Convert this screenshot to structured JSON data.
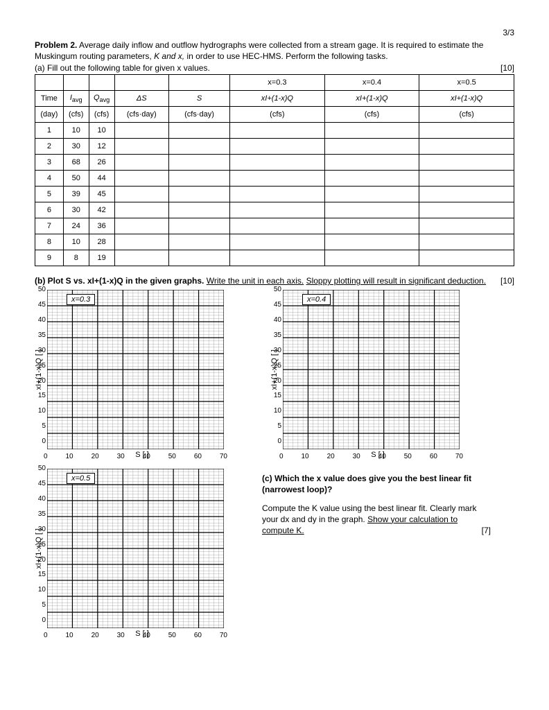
{
  "page_number": "3/3",
  "problem": {
    "number": "Problem 2.",
    "text_main": "Average daily inflow and outflow hydrographs were collected from a stream gage. It is required to estimate the Muskingum routing parameters, ",
    "text_params": "K and x, ",
    "text_mid": "in order to use HEC-HMS. Perform the following tasks.",
    "part_a": "(a) Fill out the following table for given x values.",
    "points_a": "[10]"
  },
  "table": {
    "x_headers": [
      "x=0.3",
      "x=0.4",
      "x=0.5"
    ],
    "sub_header": "xI+(1-x)Q",
    "sub_unit": "(cfs)",
    "col_time": "Time",
    "col_time_unit": "(day)",
    "col_I": "I",
    "col_I_sub": "avg",
    "col_I_unit": "(cfs)",
    "col_Q": "Q",
    "col_Q_sub": "avg",
    "col_Q_unit": "(cfs)",
    "col_dS": "ΔS",
    "col_dS_unit": "(cfs·day)",
    "col_S": "S",
    "col_S_unit": "(cfs·day)",
    "rows": [
      {
        "t": "1",
        "i": "10",
        "q": "10"
      },
      {
        "t": "2",
        "i": "30",
        "q": "12"
      },
      {
        "t": "3",
        "i": "68",
        "q": "26"
      },
      {
        "t": "4",
        "i": "50",
        "q": "44"
      },
      {
        "t": "5",
        "i": "39",
        "q": "45"
      },
      {
        "t": "6",
        "i": "30",
        "q": "42"
      },
      {
        "t": "7",
        "i": "24",
        "q": "36"
      },
      {
        "t": "8",
        "i": "10",
        "q": "28"
      },
      {
        "t": "9",
        "i": "8",
        "q": "19"
      }
    ]
  },
  "part_b": {
    "label": "(b) Plot S vs. xI+(1-x)Q  in the given graphs. ",
    "u1": "Write the unit in each axis.",
    "u2": " Sloppy plotting will result in significant deduction.",
    "points": "[10]"
  },
  "part_c": {
    "label": "(c) Which the x value does give you the best linear fit (narrowest loop)?",
    "text1": "Compute the K value using the best linear fit. Clearly mark your dx and dy in the graph. ",
    "u1": "Show your calculation to compute K.",
    "points": "[7]"
  },
  "graph": {
    "ylabel": "xI+(1-x)Q [          ]",
    "xlabel": "S [               ]",
    "legends": [
      "x=0.3",
      "x=0.4",
      "x=0.5"
    ],
    "yticks": [
      "50",
      "45",
      "40",
      "35",
      "30",
      "25",
      "20",
      "15",
      "10",
      "5",
      "0"
    ],
    "xticks": [
      "0",
      "10",
      "20",
      "30",
      "40",
      "50",
      "60",
      "70"
    ],
    "style": {
      "type": "scatter-grid",
      "xlim": [
        0,
        70
      ],
      "ylim": [
        0,
        50
      ],
      "major_step_x": 10,
      "major_step_y": 5,
      "minor_per_major": 5,
      "major_color": "#000000",
      "minor_color": "#9a9a9a",
      "major_width": 1.2,
      "minor_width": 0.4,
      "background_color": "#ffffff",
      "tick_fontsize": 10,
      "label_fontsize": 11,
      "aspect_w": 255,
      "aspect_h": 230
    }
  }
}
